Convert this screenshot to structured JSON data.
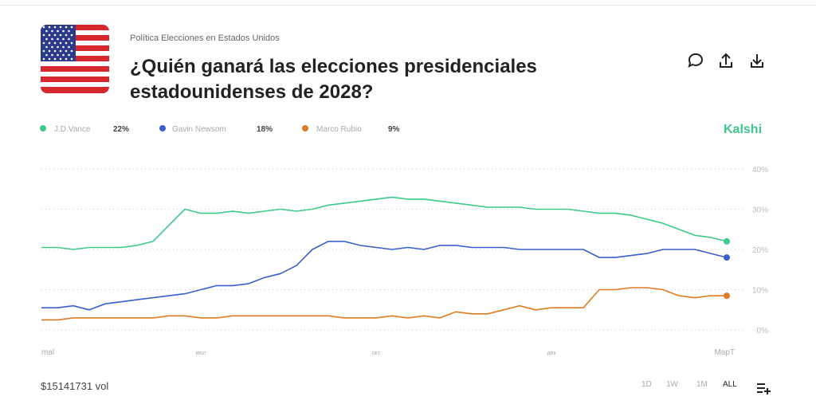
{
  "header": {
    "category": "Política Elecciones en Estados Unidos",
    "title": "¿Quién ganará las elecciones presidenciales estadounidenses de 2028?"
  },
  "source": "Kalshi",
  "volume": "$15141731 vol",
  "ranges": [
    "1D",
    "1W",
    "1M",
    "ALL"
  ],
  "chart_data": {
    "type": "line",
    "categories": [
      "mal",
      null,
      null,
      null,
      null,
      null,
      null,
      null,
      null,
      null,
      "июл",
      null,
      null,
      null,
      null,
      null,
      null,
      null,
      null,
      null,
      null,
      "окт",
      null,
      null,
      null,
      null,
      null,
      null,
      null,
      null,
      null,
      null,
      "дек",
      null,
      null,
      null,
      null,
      null,
      null,
      null,
      null,
      null,
      null,
      "МарТ"
    ],
    "series": [
      {
        "name": "J.D.Vance",
        "legend_value": "22%",
        "color": "#3cc98a",
        "values": [
          20.5,
          20.5,
          20,
          20.5,
          20.5,
          20.5,
          21,
          22,
          26,
          30,
          29,
          29,
          29.5,
          29,
          29.5,
          30,
          29.5,
          30,
          31,
          31.5,
          32,
          32.5,
          33,
          32.5,
          32.5,
          32,
          31.5,
          31,
          30.5,
          30.5,
          30.5,
          30,
          30,
          30,
          29.5,
          29,
          29,
          28.5,
          27.5,
          26.5,
          25,
          23.5,
          23,
          22
        ]
      },
      {
        "name": "Gavin Newsom",
        "legend_value": "18%",
        "color": "#3b5fcc",
        "values": [
          5.5,
          5.5,
          6,
          5,
          6.5,
          7,
          7.5,
          8,
          8.5,
          9,
          10,
          11,
          11,
          11.5,
          13,
          14,
          16,
          20,
          22,
          22,
          21,
          20.5,
          20,
          20.5,
          20,
          21,
          21,
          20.5,
          20.5,
          20.5,
          20,
          20,
          20,
          20,
          20,
          18,
          18,
          18.5,
          19,
          20,
          20,
          20,
          19,
          18
        ]
      },
      {
        "name": "Marco Rubio",
        "legend_value": "9%",
        "color": "#e07b24",
        "values": [
          2.5,
          2.5,
          3,
          3,
          3,
          3,
          3,
          3,
          3.5,
          3.5,
          3,
          3,
          3.5,
          3.5,
          3.5,
          3.5,
          3.5,
          3.5,
          3.5,
          3,
          3,
          3,
          3.5,
          3,
          3.5,
          3,
          4.5,
          4,
          4,
          5,
          6,
          5,
          5.5,
          5.5,
          5.5,
          10,
          10,
          10.5,
          10.5,
          10,
          8.5,
          8,
          8.5,
          8.5
        ]
      }
    ],
    "ylim": [
      0,
      40
    ],
    "yticks": [
      {
        "value": 0,
        "label": "0%"
      },
      {
        "value": 10,
        "label": "10%"
      },
      {
        "value": 20,
        "label": "20%"
      },
      {
        "value": 30,
        "label": "30%"
      },
      {
        "value": 40,
        "label": "40%"
      }
    ],
    "grid": true
  }
}
